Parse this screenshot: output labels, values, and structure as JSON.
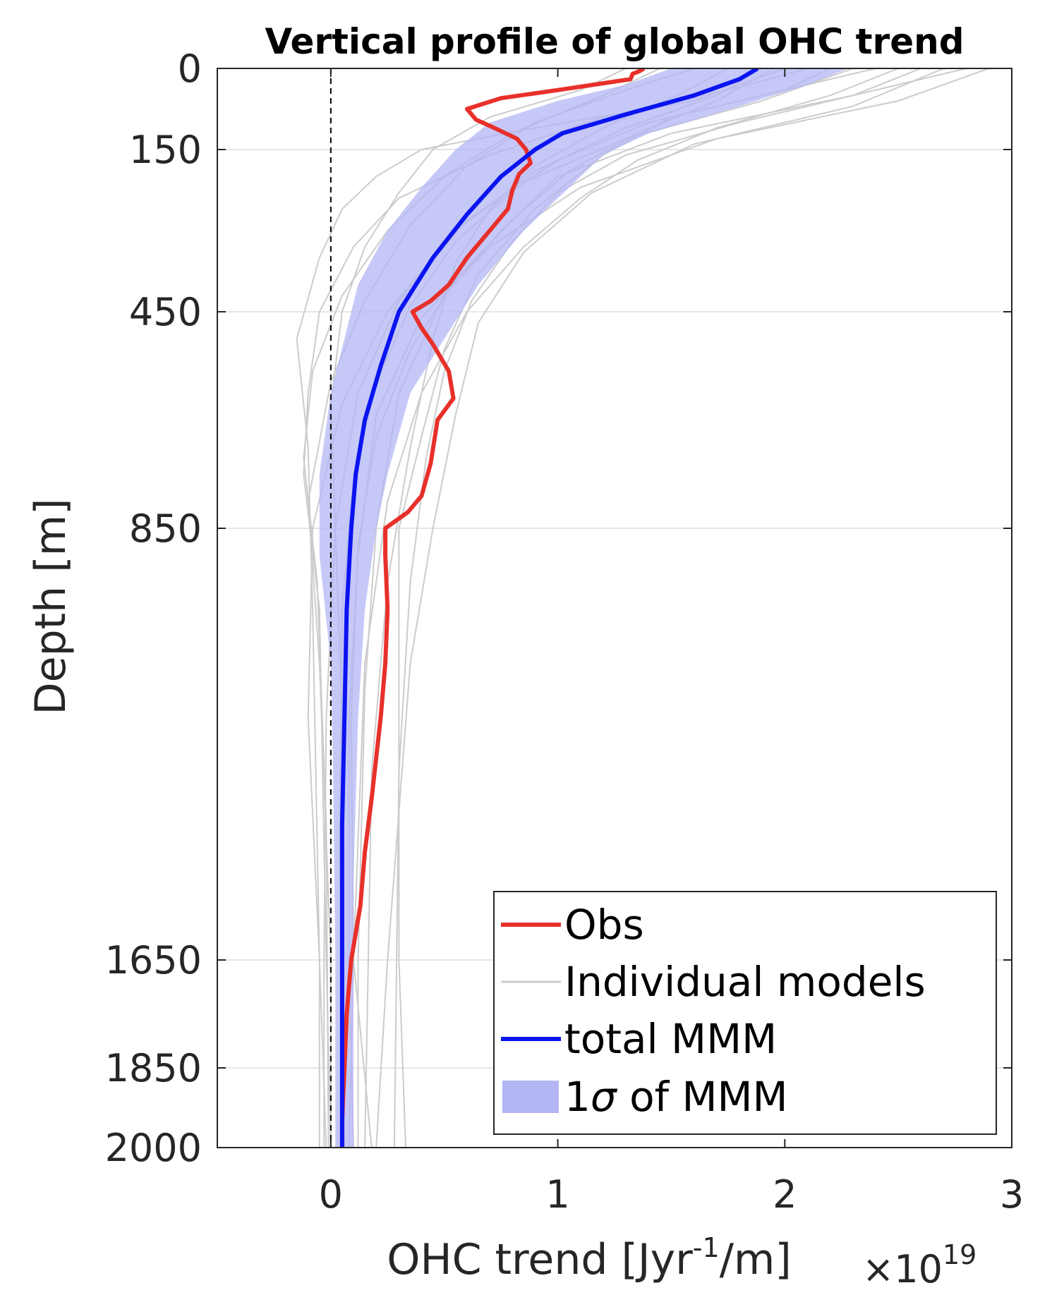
{
  "chart_data": {
    "type": "line",
    "title": "Vertical profile of global OHC trend",
    "xlabel": "OHC trend [Jyr⁻¹/m]",
    "xlabel_parts": {
      "main": "OHC trend [Jyr",
      "sup": "-1",
      "tail": "/m]"
    },
    "x_multiplier": "×10",
    "x_multiplier_exp": "19",
    "ylabel": "Depth [m]",
    "xlim": [
      -0.5,
      3
    ],
    "ylim": [
      2000,
      0
    ],
    "y_scale": "nonlinear (depth grid)",
    "xticks": [
      0,
      1,
      2,
      3
    ],
    "xtick_labels": [
      "0",
      "1",
      "2",
      "3"
    ],
    "yticks": [
      0,
      150,
      450,
      850,
      1650,
      1850,
      2000
    ],
    "ytick_labels": [
      "0",
      "150",
      "450",
      "850",
      "1650",
      "1850",
      "2000"
    ],
    "y_depth_map": [
      [
        0,
        0
      ],
      [
        150,
        150
      ],
      [
        450,
        450
      ],
      [
        850,
        850
      ],
      [
        1650,
        1650
      ],
      [
        1850,
        1850
      ],
      [
        2000,
        2000
      ]
    ],
    "grid": true,
    "zero_line": {
      "x": 0,
      "style": "dashed",
      "color": "#000000"
    },
    "legend": {
      "placement": "bottom-right",
      "entries": [
        {
          "label": "Obs",
          "type": "line",
          "color": "#e8302a"
        },
        {
          "label": "Individual models",
          "type": "line",
          "color": "#cccccc"
        },
        {
          "label": "total MMM",
          "type": "line",
          "color": "#0a14f0"
        },
        {
          "label": "1σ of MMM",
          "type": "patch",
          "label_main": "1",
          "label_sigma": "σ",
          "label_tail": " of MMM",
          "color": "#b3b5f5"
        }
      ]
    },
    "series": [
      {
        "name": "Obs",
        "color": "#e8302a",
        "points": [
          [
            1.38,
            0
          ],
          [
            1.36,
            5
          ],
          [
            1.33,
            10
          ],
          [
            1.32,
            20
          ],
          [
            1.0,
            40
          ],
          [
            0.75,
            55
          ],
          [
            0.6,
            75
          ],
          [
            0.64,
            95
          ],
          [
            0.72,
            110
          ],
          [
            0.82,
            130
          ],
          [
            0.86,
            150
          ],
          [
            0.88,
            175
          ],
          [
            0.83,
            195
          ],
          [
            0.8,
            225
          ],
          [
            0.78,
            260
          ],
          [
            0.7,
            300
          ],
          [
            0.6,
            350
          ],
          [
            0.52,
            400
          ],
          [
            0.44,
            430
          ],
          [
            0.36,
            450
          ],
          [
            0.4,
            480
          ],
          [
            0.45,
            510
          ],
          [
            0.52,
            560
          ],
          [
            0.54,
            610
          ],
          [
            0.47,
            650
          ],
          [
            0.44,
            730
          ],
          [
            0.4,
            790
          ],
          [
            0.34,
            820
          ],
          [
            0.24,
            850
          ],
          [
            0.24,
            900
          ],
          [
            0.25,
            1000
          ],
          [
            0.24,
            1100
          ],
          [
            0.22,
            1200
          ],
          [
            0.18,
            1350
          ],
          [
            0.15,
            1450
          ],
          [
            0.13,
            1550
          ],
          [
            0.09,
            1650
          ],
          [
            0.07,
            1750
          ],
          [
            0.06,
            1850
          ],
          [
            0.05,
            1950
          ],
          [
            0.05,
            2000
          ]
        ]
      },
      {
        "name": "total MMM",
        "color": "#0a14f0",
        "points": [
          [
            1.88,
            0
          ],
          [
            1.8,
            20
          ],
          [
            1.6,
            50
          ],
          [
            1.3,
            85
          ],
          [
            1.02,
            120
          ],
          [
            0.9,
            150
          ],
          [
            0.75,
            200
          ],
          [
            0.6,
            270
          ],
          [
            0.45,
            350
          ],
          [
            0.3,
            450
          ],
          [
            0.22,
            550
          ],
          [
            0.15,
            650
          ],
          [
            0.11,
            750
          ],
          [
            0.09,
            850
          ],
          [
            0.07,
            1000
          ],
          [
            0.06,
            1200
          ],
          [
            0.05,
            1400
          ],
          [
            0.05,
            1650
          ],
          [
            0.05,
            1850
          ],
          [
            0.05,
            2000
          ]
        ]
      }
    ],
    "band": {
      "name": "1σ of MMM",
      "color": "#b3b5f5",
      "lower": [
        [
          1.5,
          0
        ],
        [
          1.3,
          30
        ],
        [
          1.0,
          60
        ],
        [
          0.7,
          100
        ],
        [
          0.55,
          150
        ],
        [
          0.4,
          220
        ],
        [
          0.25,
          300
        ],
        [
          0.12,
          400
        ],
        [
          0.06,
          500
        ],
        [
          0.0,
          600
        ],
        [
          -0.05,
          750
        ],
        [
          -0.05,
          900
        ],
        [
          0.0,
          1100
        ],
        [
          0.01,
          1300
        ],
        [
          0.02,
          1650
        ],
        [
          0.02,
          2000
        ]
      ],
      "upper": [
        [
          2.28,
          0
        ],
        [
          2.1,
          30
        ],
        [
          1.8,
          70
        ],
        [
          1.4,
          120
        ],
        [
          1.2,
          160
        ],
        [
          1.05,
          220
        ],
        [
          0.85,
          300
        ],
        [
          0.65,
          400
        ],
        [
          0.5,
          500
        ],
        [
          0.35,
          600
        ],
        [
          0.25,
          750
        ],
        [
          0.2,
          850
        ],
        [
          0.15,
          1000
        ],
        [
          0.12,
          1200
        ],
        [
          0.1,
          1500
        ],
        [
          0.1,
          2000
        ]
      ]
    },
    "individual_models": [
      [
        [
          2.9,
          0
        ],
        [
          2.5,
          60
        ],
        [
          1.7,
          130
        ],
        [
          1.1,
          220
        ],
        [
          0.7,
          330
        ],
        [
          0.4,
          460
        ],
        [
          0.2,
          640
        ],
        [
          0.12,
          900
        ],
        [
          0.08,
          1200
        ],
        [
          0.08,
          1650
        ],
        [
          0.1,
          2000
        ]
      ],
      [
        [
          2.6,
          0
        ],
        [
          2.3,
          50
        ],
        [
          1.5,
          120
        ],
        [
          1.0,
          200
        ],
        [
          0.75,
          300
        ],
        [
          0.5,
          420
        ],
        [
          0.3,
          600
        ],
        [
          0.2,
          850
        ],
        [
          0.15,
          1150
        ],
        [
          0.12,
          1650
        ],
        [
          0.12,
          2000
        ]
      ],
      [
        [
          2.2,
          0
        ],
        [
          2.0,
          40
        ],
        [
          1.4,
          100
        ],
        [
          1.0,
          170
        ],
        [
          0.6,
          280
        ],
        [
          0.3,
          430
        ],
        [
          0.12,
          600
        ],
        [
          0.02,
          850
        ],
        [
          -0.02,
          1200
        ],
        [
          -0.03,
          1650
        ],
        [
          -0.03,
          2000
        ]
      ],
      [
        [
          1.9,
          0
        ],
        [
          1.7,
          50
        ],
        [
          1.3,
          110
        ],
        [
          0.9,
          190
        ],
        [
          0.55,
          300
        ],
        [
          0.25,
          450
        ],
        [
          0.05,
          620
        ],
        [
          -0.08,
          850
        ],
        [
          -0.1,
          1200
        ],
        [
          -0.05,
          1650
        ],
        [
          -0.05,
          2000
        ]
      ],
      [
        [
          1.6,
          0
        ],
        [
          1.3,
          40
        ],
        [
          0.9,
          100
        ],
        [
          0.6,
          180
        ],
        [
          0.35,
          290
        ],
        [
          0.15,
          430
        ],
        [
          0.0,
          580
        ],
        [
          -0.1,
          800
        ],
        [
          -0.05,
          1100
        ],
        [
          0.0,
          1650
        ],
        [
          0.0,
          2000
        ]
      ],
      [
        [
          2.4,
          0
        ],
        [
          2.1,
          30
        ],
        [
          1.5,
          90
        ],
        [
          1.2,
          160
        ],
        [
          0.9,
          260
        ],
        [
          0.65,
          380
        ],
        [
          0.5,
          520
        ],
        [
          0.4,
          680
        ],
        [
          0.3,
          850
        ],
        [
          0.3,
          1100
        ],
        [
          0.3,
          1650
        ],
        [
          0.33,
          2000
        ]
      ],
      [
        [
          2.0,
          0
        ],
        [
          1.6,
          60
        ],
        [
          0.9,
          110
        ],
        [
          0.4,
          150
        ],
        [
          0.2,
          200
        ],
        [
          0.05,
          260
        ],
        [
          -0.05,
          350
        ],
        [
          -0.15,
          500
        ],
        [
          -0.1,
          700
        ],
        [
          -0.08,
          1000
        ],
        [
          -0.05,
          1650
        ],
        [
          -0.02,
          2000
        ]
      ],
      [
        [
          1.3,
          0
        ],
        [
          1.1,
          40
        ],
        [
          0.7,
          90
        ],
        [
          0.45,
          150
        ],
        [
          0.3,
          230
        ],
        [
          0.15,
          330
        ],
        [
          0.05,
          450
        ],
        [
          0.0,
          620
        ],
        [
          0.02,
          850
        ],
        [
          0.05,
          1200
        ],
        [
          0.06,
          2000
        ]
      ],
      [
        [
          2.7,
          0
        ],
        [
          2.3,
          70
        ],
        [
          1.6,
          140
        ],
        [
          1.15,
          230
        ],
        [
          0.85,
          340
        ],
        [
          0.65,
          470
        ],
        [
          0.55,
          640
        ],
        [
          0.45,
          850
        ],
        [
          0.35,
          1100
        ],
        [
          0.25,
          1650
        ],
        [
          0.2,
          2000
        ]
      ],
      [
        [
          2.3,
          0
        ],
        [
          1.9,
          60
        ],
        [
          1.3,
          130
        ],
        [
          0.85,
          210
        ],
        [
          0.55,
          320
        ],
        [
          0.35,
          440
        ],
        [
          0.2,
          580
        ],
        [
          0.1,
          760
        ],
        [
          0.05,
          1000
        ],
        [
          0.04,
          1400
        ],
        [
          0.05,
          2000
        ]
      ],
      [
        [
          2.1,
          0
        ],
        [
          1.8,
          35
        ],
        [
          1.2,
          90
        ],
        [
          0.7,
          160
        ],
        [
          0.3,
          240
        ],
        [
          0.1,
          330
        ],
        [
          -0.05,
          450
        ],
        [
          -0.1,
          600
        ],
        [
          -0.12,
          750
        ],
        [
          -0.05,
          1000
        ],
        [
          -0.02,
          1650
        ],
        [
          0.0,
          2000
        ]
      ],
      [
        [
          1.75,
          0
        ],
        [
          1.55,
          45
        ],
        [
          1.2,
          110
        ],
        [
          0.9,
          180
        ],
        [
          0.7,
          260
        ],
        [
          0.55,
          360
        ],
        [
          0.45,
          500
        ],
        [
          0.35,
          700
        ],
        [
          0.25,
          950
        ],
        [
          0.18,
          1300
        ],
        [
          0.15,
          2000
        ]
      ],
      [
        [
          2.5,
          0
        ],
        [
          2.2,
          50
        ],
        [
          1.7,
          110
        ],
        [
          1.35,
          170
        ],
        [
          1.1,
          240
        ],
        [
          0.85,
          330
        ],
        [
          0.6,
          450
        ],
        [
          0.4,
          600
        ],
        [
          0.25,
          800
        ],
        [
          0.15,
          1100
        ],
        [
          0.1,
          1650
        ],
        [
          0.08,
          2000
        ]
      ],
      [
        [
          1.45,
          0
        ],
        [
          1.2,
          50
        ],
        [
          0.8,
          120
        ],
        [
          0.5,
          200
        ],
        [
          0.25,
          300
        ],
        [
          0.05,
          420
        ],
        [
          -0.08,
          560
        ],
        [
          -0.12,
          720
        ],
        [
          -0.06,
          950
        ],
        [
          -0.02,
          1400
        ],
        [
          -0.01,
          2000
        ]
      ],
      [
        [
          2.8,
          0
        ],
        [
          2.4,
          40
        ],
        [
          1.8,
          100
        ],
        [
          1.3,
          160
        ],
        [
          1.0,
          230
        ],
        [
          0.8,
          320
        ],
        [
          0.62,
          430
        ],
        [
          0.5,
          560
        ],
        [
          0.42,
          720
        ],
        [
          0.35,
          950
        ],
        [
          0.3,
          1300
        ],
        [
          0.28,
          2000
        ]
      ],
      [
        [
          1.95,
          0
        ],
        [
          1.7,
          60
        ],
        [
          1.35,
          120
        ],
        [
          1.05,
          190
        ],
        [
          0.8,
          280
        ],
        [
          0.55,
          390
        ],
        [
          0.35,
          520
        ],
        [
          0.2,
          680
        ],
        [
          0.12,
          880
        ],
        [
          0.09,
          1200
        ],
        [
          0.1,
          1650
        ],
        [
          0.18,
          2000
        ]
      ]
    ]
  }
}
